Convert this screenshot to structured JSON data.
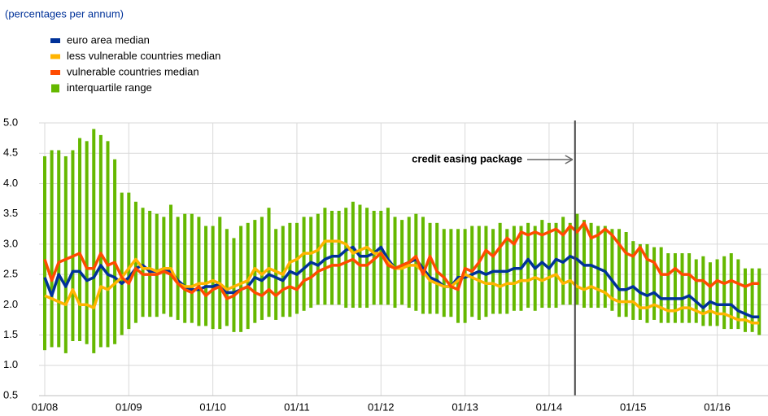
{
  "chart_data": {
    "type": "line",
    "subtitle": "(percentages per annum)",
    "categories": [
      "01/08",
      null,
      null,
      null,
      null,
      null,
      null,
      null,
      null,
      null,
      null,
      null,
      "01/09",
      null,
      null,
      null,
      null,
      null,
      null,
      null,
      null,
      null,
      null,
      null,
      "01/10",
      null,
      null,
      null,
      null,
      null,
      null,
      null,
      null,
      null,
      null,
      null,
      "01/11",
      null,
      null,
      null,
      null,
      null,
      null,
      null,
      null,
      null,
      null,
      null,
      "01/12",
      null,
      null,
      null,
      null,
      null,
      null,
      null,
      null,
      null,
      null,
      null,
      "01/13",
      null,
      null,
      null,
      null,
      null,
      null,
      null,
      null,
      null,
      null,
      null,
      "01/14",
      null,
      null,
      null,
      null,
      null,
      null,
      null,
      null,
      null,
      null,
      null,
      "01/15",
      null,
      null,
      null,
      null,
      null,
      null,
      null,
      null,
      null,
      null,
      null,
      "01/16",
      null,
      null,
      null,
      null,
      null,
      null
    ],
    "series": [
      {
        "name": "euro area median",
        "color": "#003299",
        "values": [
          2.45,
          2.15,
          2.5,
          2.3,
          2.55,
          2.55,
          2.4,
          2.45,
          2.65,
          2.5,
          2.45,
          2.35,
          2.45,
          2.6,
          2.65,
          2.55,
          2.55,
          2.6,
          2.55,
          2.4,
          2.3,
          2.25,
          2.25,
          2.3,
          2.3,
          2.35,
          2.2,
          2.2,
          2.25,
          2.3,
          2.45,
          2.4,
          2.5,
          2.45,
          2.4,
          2.55,
          2.5,
          2.6,
          2.7,
          2.65,
          2.75,
          2.8,
          2.8,
          2.9,
          2.95,
          2.8,
          2.8,
          2.85,
          2.95,
          2.75,
          2.6,
          2.65,
          2.7,
          2.75,
          2.6,
          2.45,
          2.4,
          2.3,
          2.3,
          2.45,
          2.45,
          2.5,
          2.55,
          2.5,
          2.55,
          2.55,
          2.55,
          2.6,
          2.6,
          2.75,
          2.6,
          2.7,
          2.6,
          2.75,
          2.7,
          2.8,
          2.75,
          2.65,
          2.65,
          2.6,
          2.55,
          2.4,
          2.25,
          2.25,
          2.3,
          2.2,
          2.15,
          2.2,
          2.1,
          2.1,
          2.1,
          2.1,
          2.15,
          2.05,
          1.95,
          2.05,
          2.0,
          2.0,
          2.0,
          1.9,
          1.85,
          1.8,
          1.8
        ]
      },
      {
        "name": "less vulnerable countries median",
        "color": "#ffb400",
        "values": [
          2.15,
          2.1,
          2.05,
          2.0,
          2.25,
          2.0,
          2.0,
          1.95,
          2.3,
          2.25,
          2.35,
          2.45,
          2.6,
          2.75,
          2.6,
          2.6,
          2.55,
          2.6,
          2.6,
          2.35,
          2.3,
          2.3,
          2.35,
          2.35,
          2.4,
          2.35,
          2.25,
          2.3,
          2.35,
          2.4,
          2.6,
          2.5,
          2.6,
          2.55,
          2.5,
          2.7,
          2.75,
          2.85,
          2.85,
          2.9,
          3.05,
          3.05,
          3.05,
          3.0,
          2.85,
          2.9,
          2.95,
          2.85,
          2.85,
          2.7,
          2.6,
          2.6,
          2.65,
          2.65,
          2.55,
          2.4,
          2.35,
          2.3,
          2.3,
          2.4,
          2.5,
          2.45,
          2.4,
          2.35,
          2.35,
          2.3,
          2.35,
          2.35,
          2.4,
          2.4,
          2.45,
          2.4,
          2.45,
          2.5,
          2.35,
          2.4,
          2.3,
          2.25,
          2.3,
          2.25,
          2.2,
          2.1,
          2.05,
          2.05,
          2.05,
          1.95,
          1.95,
          2.0,
          1.95,
          1.9,
          1.9,
          1.95,
          1.95,
          1.9,
          1.85,
          1.9,
          1.85,
          1.85,
          1.8,
          1.75,
          1.75,
          1.7,
          1.7
        ]
      },
      {
        "name": "vulnerable countries median",
        "color": "#ff4b00",
        "values": [
          2.75,
          2.4,
          2.7,
          2.75,
          2.8,
          2.85,
          2.6,
          2.6,
          2.85,
          2.65,
          2.7,
          2.45,
          2.35,
          2.6,
          2.5,
          2.5,
          2.5,
          2.55,
          2.5,
          2.35,
          2.25,
          2.2,
          2.3,
          2.15,
          2.25,
          2.3,
          2.1,
          2.15,
          2.25,
          2.3,
          2.2,
          2.15,
          2.25,
          2.15,
          2.25,
          2.3,
          2.25,
          2.4,
          2.45,
          2.55,
          2.6,
          2.65,
          2.65,
          2.7,
          2.75,
          2.65,
          2.65,
          2.75,
          2.85,
          2.65,
          2.6,
          2.65,
          2.7,
          2.8,
          2.5,
          2.8,
          2.55,
          2.45,
          2.3,
          2.25,
          2.6,
          2.55,
          2.7,
          2.9,
          2.8,
          2.95,
          3.1,
          3.0,
          3.2,
          3.15,
          3.2,
          3.15,
          3.2,
          3.25,
          3.15,
          3.3,
          3.2,
          3.35,
          3.1,
          3.15,
          3.25,
          3.15,
          3.0,
          2.85,
          2.8,
          2.95,
          2.75,
          2.7,
          2.5,
          2.5,
          2.6,
          2.5,
          2.5,
          2.4,
          2.4,
          2.3,
          2.4,
          2.35,
          2.4,
          2.35,
          2.3,
          2.35,
          2.35
        ]
      }
    ],
    "range": {
      "name": "interquartile range",
      "color": "#65b800",
      "low": [
        1.25,
        1.3,
        1.3,
        1.2,
        1.4,
        1.4,
        1.35,
        1.2,
        1.3,
        1.3,
        1.35,
        1.5,
        1.6,
        1.7,
        1.8,
        1.8,
        1.8,
        1.85,
        1.8,
        1.75,
        1.7,
        1.7,
        1.65,
        1.65,
        1.6,
        1.6,
        1.65,
        1.55,
        1.55,
        1.6,
        1.7,
        1.75,
        1.8,
        1.75,
        1.8,
        1.8,
        1.85,
        1.9,
        1.95,
        2.0,
        2.0,
        2.0,
        2.0,
        1.95,
        1.95,
        1.95,
        1.95,
        2.0,
        2.0,
        2.0,
        1.95,
        2.0,
        1.95,
        1.9,
        1.85,
        1.85,
        1.85,
        1.8,
        1.8,
        1.7,
        1.7,
        1.8,
        1.75,
        1.8,
        1.85,
        1.85,
        1.85,
        1.9,
        1.9,
        1.95,
        1.9,
        1.95,
        1.95,
        1.95,
        2.0,
        2.0,
        2.0,
        1.95,
        1.95,
        1.95,
        1.95,
        1.9,
        1.8,
        1.8,
        1.75,
        1.75,
        1.7,
        1.75,
        1.7,
        1.7,
        1.7,
        1.7,
        1.7,
        1.7,
        1.65,
        1.65,
        1.65,
        1.6,
        1.6,
        1.6,
        1.55,
        1.55,
        1.5
      ],
      "high": [
        4.45,
        4.55,
        4.55,
        4.45,
        4.55,
        4.75,
        4.7,
        4.9,
        4.8,
        4.7,
        4.4,
        3.85,
        3.85,
        3.7,
        3.6,
        3.55,
        3.5,
        3.45,
        3.65,
        3.45,
        3.5,
        3.5,
        3.45,
        3.3,
        3.3,
        3.45,
        3.25,
        3.1,
        3.3,
        3.35,
        3.4,
        3.45,
        3.6,
        3.25,
        3.3,
        3.35,
        3.35,
        3.45,
        3.45,
        3.5,
        3.6,
        3.55,
        3.55,
        3.6,
        3.7,
        3.65,
        3.6,
        3.55,
        3.55,
        3.6,
        3.45,
        3.4,
        3.45,
        3.5,
        3.45,
        3.35,
        3.35,
        3.25,
        3.25,
        3.25,
        3.25,
        3.3,
        3.3,
        3.3,
        3.25,
        3.35,
        3.25,
        3.3,
        3.3,
        3.35,
        3.3,
        3.4,
        3.35,
        3.35,
        3.45,
        3.35,
        3.5,
        3.4,
        3.35,
        3.3,
        3.3,
        3.25,
        3.25,
        3.2,
        3.05,
        3.0,
        3.0,
        2.95,
        2.95,
        2.85,
        2.85,
        2.85,
        2.85,
        2.75,
        2.8,
        2.7,
        2.75,
        2.8,
        2.85,
        2.75,
        2.6,
        2.6,
        2.6
      ]
    },
    "annotation": {
      "text": "credit easing package",
      "x_index": 75.7
    },
    "ylim": [
      0.5,
      5.0
    ],
    "yticks": [
      0.5,
      {
        "value": 1,
        "label": "1.0"
      },
      1.5,
      {
        "value": 2,
        "label": "2.0"
      },
      2.5,
      {
        "value": 3,
        "label": "3.0"
      },
      3.5,
      {
        "value": 4,
        "label": "4.0"
      },
      4.5,
      {
        "value": 5,
        "label": "5.0"
      }
    ],
    "grid": true
  }
}
